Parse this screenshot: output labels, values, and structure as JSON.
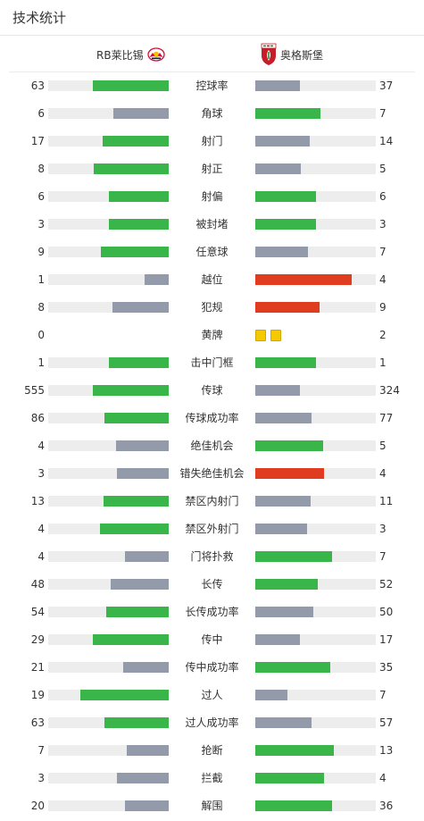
{
  "header": {
    "title": "技术统计"
  },
  "teams": {
    "home": "RB莱比锡",
    "away": "奥格斯堡"
  },
  "colors": {
    "win": "#3ab54a",
    "lose": "#939bab",
    "highlight": "#e03c20",
    "track": "#ededed",
    "card": "#f5c800"
  },
  "stats": [
    {
      "label": "控球率",
      "home": "63",
      "away": "37",
      "hp": 0.63,
      "ap": 0.37,
      "hc": "win",
      "ac": "lose"
    },
    {
      "label": "角球",
      "home": "6",
      "away": "7",
      "hp": 0.46,
      "ap": 0.54,
      "hc": "lose",
      "ac": "win"
    },
    {
      "label": "射门",
      "home": "17",
      "away": "14",
      "hp": 0.55,
      "ap": 0.45,
      "hc": "win",
      "ac": "lose"
    },
    {
      "label": "射正",
      "home": "8",
      "away": "5",
      "hp": 0.62,
      "ap": 0.38,
      "hc": "win",
      "ac": "lose"
    },
    {
      "label": "射偏",
      "home": "6",
      "away": "6",
      "hp": 0.5,
      "ap": 0.5,
      "hc": "win",
      "ac": "win"
    },
    {
      "label": "被封堵",
      "home": "3",
      "away": "3",
      "hp": 0.5,
      "ap": 0.5,
      "hc": "win",
      "ac": "win"
    },
    {
      "label": "任意球",
      "home": "9",
      "away": "7",
      "hp": 0.56,
      "ap": 0.44,
      "hc": "win",
      "ac": "lose"
    },
    {
      "label": "越位",
      "home": "1",
      "away": "4",
      "hp": 0.2,
      "ap": 0.8,
      "hc": "lose",
      "ac": "highlight"
    },
    {
      "label": "犯规",
      "home": "8",
      "away": "9",
      "hp": 0.47,
      "ap": 0.53,
      "hc": "lose",
      "ac": "highlight"
    },
    {
      "label": "黄牌",
      "home": "0",
      "away": "2",
      "cards": 2
    },
    {
      "label": "击中门框",
      "home": "1",
      "away": "1",
      "hp": 0.5,
      "ap": 0.5,
      "hc": "win",
      "ac": "win"
    },
    {
      "label": "传球",
      "home": "555",
      "away": "324",
      "hp": 0.63,
      "ap": 0.37,
      "hc": "win",
      "ac": "lose"
    },
    {
      "label": "传球成功率",
      "home": "86",
      "away": "77",
      "hp": 0.53,
      "ap": 0.47,
      "hc": "win",
      "ac": "lose"
    },
    {
      "label": "绝佳机会",
      "home": "4",
      "away": "5",
      "hp": 0.44,
      "ap": 0.56,
      "hc": "lose",
      "ac": "win"
    },
    {
      "label": "错失绝佳机会",
      "home": "3",
      "away": "4",
      "hp": 0.43,
      "ap": 0.57,
      "hc": "lose",
      "ac": "highlight"
    },
    {
      "label": "禁区内射门",
      "home": "13",
      "away": "11",
      "hp": 0.54,
      "ap": 0.46,
      "hc": "win",
      "ac": "lose"
    },
    {
      "label": "禁区外射门",
      "home": "4",
      "away": "3",
      "hp": 0.57,
      "ap": 0.43,
      "hc": "win",
      "ac": "lose"
    },
    {
      "label": "门将扑救",
      "home": "4",
      "away": "7",
      "hp": 0.36,
      "ap": 0.64,
      "hc": "lose",
      "ac": "win"
    },
    {
      "label": "长传",
      "home": "48",
      "away": "52",
      "hp": 0.48,
      "ap": 0.52,
      "hc": "lose",
      "ac": "win"
    },
    {
      "label": "长传成功率",
      "home": "54",
      "away": "50",
      "hp": 0.52,
      "ap": 0.48,
      "hc": "win",
      "ac": "lose"
    },
    {
      "label": "传中",
      "home": "29",
      "away": "17",
      "hp": 0.63,
      "ap": 0.37,
      "hc": "win",
      "ac": "lose"
    },
    {
      "label": "传中成功率",
      "home": "21",
      "away": "35",
      "hp": 0.38,
      "ap": 0.62,
      "hc": "lose",
      "ac": "win"
    },
    {
      "label": "过人",
      "home": "19",
      "away": "7",
      "hp": 0.73,
      "ap": 0.27,
      "hc": "win",
      "ac": "lose"
    },
    {
      "label": "过人成功率",
      "home": "63",
      "away": "57",
      "hp": 0.53,
      "ap": 0.47,
      "hc": "win",
      "ac": "lose"
    },
    {
      "label": "抢断",
      "home": "7",
      "away": "13",
      "hp": 0.35,
      "ap": 0.65,
      "hc": "lose",
      "ac": "win"
    },
    {
      "label": "拦截",
      "home": "3",
      "away": "4",
      "hp": 0.43,
      "ap": 0.57,
      "hc": "lose",
      "ac": "win"
    },
    {
      "label": "解围",
      "home": "20",
      "away": "36",
      "hp": 0.36,
      "ap": 0.64,
      "hc": "lose",
      "ac": "win"
    }
  ]
}
